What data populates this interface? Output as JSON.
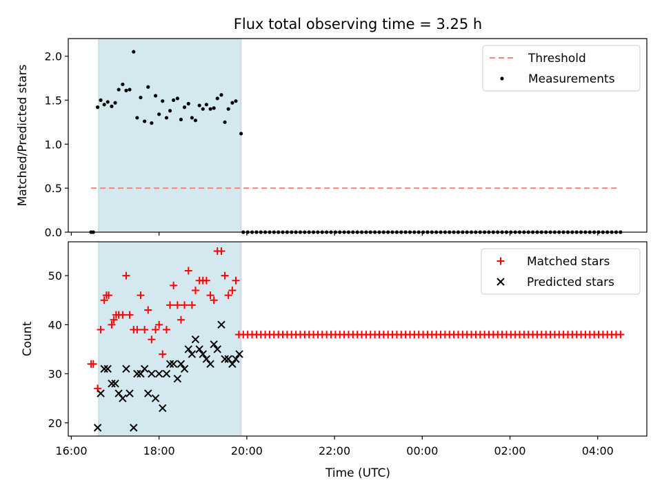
{
  "title": "Flux total observing time = 3.25 h",
  "xlabel": "Time (UTC)",
  "colors": {
    "threshold": "#ff7f7f",
    "measurements": "#000000",
    "matched": "#ff0000",
    "predicted": "#000000",
    "shade_fill": "#d3e9ef",
    "shade_edge": "#a9d6e0"
  },
  "chart_data": [
    {
      "type": "scatter",
      "ylabel": "Matched/Predicted stars",
      "xlim": [
        15.93,
        29.12
      ],
      "ylim": [
        0.0,
        2.2
      ],
      "x_tick_labels": [],
      "y_ticks": [
        0.0,
        0.5,
        1.0,
        1.5,
        2.0
      ],
      "y_tick_labels": [
        "0.0",
        "0.5",
        "1.0",
        "1.5",
        "2.0"
      ],
      "shaded_interval_hours": [
        16.62,
        19.87
      ],
      "legend_placement": "upper right",
      "series": [
        {
          "name": "Threshold",
          "kind": "dashed-line",
          "x": [
            16.45,
            28.45
          ],
          "y": [
            0.5,
            0.5
          ]
        },
        {
          "name": "Measurements",
          "kind": "points",
          "x": [
            16.45,
            16.5,
            16.6,
            16.67,
            16.75,
            16.83,
            16.92,
            17.0,
            17.08,
            17.17,
            17.25,
            17.33,
            17.42,
            17.5,
            17.58,
            17.67,
            17.75,
            17.83,
            17.92,
            18.0,
            18.08,
            18.17,
            18.25,
            18.33,
            18.42,
            18.5,
            18.58,
            18.67,
            18.75,
            18.83,
            18.92,
            19.0,
            19.08,
            19.17,
            19.25,
            19.33,
            19.42,
            19.5,
            19.58,
            19.67,
            19.75,
            19.87
          ],
          "y": [
            0.0,
            0.0,
            1.42,
            1.5,
            1.45,
            1.48,
            1.43,
            1.47,
            1.62,
            1.68,
            1.61,
            1.62,
            2.05,
            1.3,
            1.53,
            1.26,
            1.65,
            1.24,
            1.55,
            1.34,
            1.49,
            1.3,
            1.38,
            1.5,
            1.52,
            1.28,
            1.42,
            1.46,
            1.3,
            1.27,
            1.44,
            1.4,
            1.45,
            1.4,
            1.41,
            1.52,
            1.56,
            1.25,
            1.4,
            1.47,
            1.49,
            1.12
          ]
        },
        {
          "name": "",
          "kind": "points-zero",
          "x_start": 19.92,
          "x_end": 28.58,
          "x_step": 0.1,
          "y": 0.0
        }
      ]
    },
    {
      "type": "scatter",
      "ylabel": "Count",
      "xlim": [
        15.93,
        29.12
      ],
      "ylim": [
        17.3,
        56.9
      ],
      "x_ticks": [
        16,
        18,
        20,
        22,
        24,
        26,
        28
      ],
      "x_tick_labels": [
        "16:00",
        "18:00",
        "20:00",
        "22:00",
        "00:00",
        "02:00",
        "04:00"
      ],
      "y_ticks": [
        20,
        30,
        40,
        50
      ],
      "y_tick_labels": [
        "20",
        "30",
        "40",
        "50"
      ],
      "shaded_interval_hours": [
        16.62,
        19.87
      ],
      "legend_placement": "upper right",
      "series": [
        {
          "name": "Matched stars",
          "marker": "+",
          "x": [
            16.45,
            16.5,
            16.6,
            16.67,
            16.75,
            16.8,
            16.85,
            16.92,
            16.97,
            17.02,
            17.08,
            17.17,
            17.25,
            17.33,
            17.42,
            17.5,
            17.58,
            17.67,
            17.75,
            17.83,
            17.92,
            18.0,
            18.08,
            18.17,
            18.25,
            18.33,
            18.42,
            18.5,
            18.58,
            18.67,
            18.75,
            18.83,
            18.92,
            19.0,
            19.08,
            19.17,
            19.25,
            19.33,
            19.42,
            19.5,
            19.58,
            19.67,
            19.75,
            19.82
          ],
          "y": [
            32,
            32,
            27,
            39,
            45,
            46,
            46,
            40,
            41,
            42,
            42,
            42,
            50,
            42,
            39,
            39,
            46,
            39,
            43,
            37,
            39,
            40,
            34,
            39,
            44,
            48,
            44,
            41,
            44,
            51,
            44,
            47,
            49,
            49,
            49,
            46,
            45,
            55,
            55,
            50,
            46,
            47,
            49,
            38
          ]
        },
        {
          "name": "",
          "marker": "+",
          "x_start": 19.92,
          "x_end": 28.58,
          "x_step": 0.1,
          "y": 38
        },
        {
          "name": "Predicted stars",
          "marker": "x",
          "x": [
            16.6,
            16.67,
            16.75,
            16.83,
            16.92,
            17.0,
            17.08,
            17.17,
            17.25,
            17.33,
            17.42,
            17.5,
            17.58,
            17.67,
            17.75,
            17.83,
            17.92,
            18.0,
            18.08,
            18.17,
            18.25,
            18.33,
            18.42,
            18.5,
            18.58,
            18.67,
            18.75,
            18.83,
            18.92,
            19.0,
            19.08,
            19.17,
            19.25,
            19.33,
            19.42,
            19.5,
            19.58,
            19.67,
            19.75,
            19.83
          ],
          "y": [
            19,
            26,
            31,
            31,
            28,
            28,
            26,
            25,
            31,
            26,
            19,
            30,
            30,
            31,
            26,
            30,
            25,
            30,
            23,
            30,
            32,
            32,
            29,
            32,
            31,
            35,
            34,
            37,
            35,
            34,
            33,
            32,
            36,
            35,
            40,
            33,
            33,
            32,
            33,
            34
          ]
        }
      ]
    }
  ]
}
